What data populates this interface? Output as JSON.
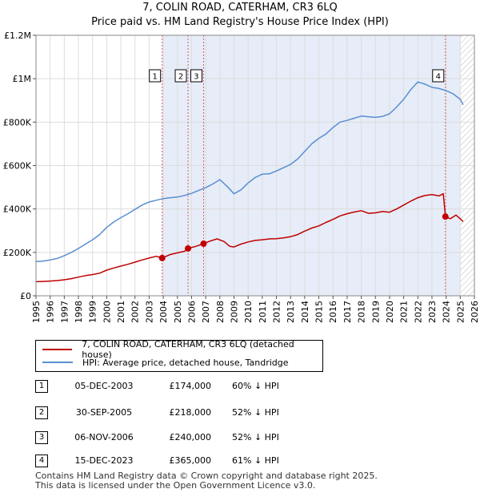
{
  "chart_data": {
    "type": "line",
    "title": "7, COLIN ROAD, CATERHAM, CR3 6LQ",
    "subtitle": "Price paid vs. HM Land Registry's House Price Index (HPI)",
    "xlabel": "",
    "ylabel": "",
    "xlim": [
      1995,
      2026
    ],
    "ylim": [
      0,
      1200000
    ],
    "x_ticks": [
      "1995",
      "1996",
      "1997",
      "1998",
      "1999",
      "2000",
      "2001",
      "2002",
      "2003",
      "2004",
      "2005",
      "2006",
      "2007",
      "2008",
      "2009",
      "2010",
      "2011",
      "2012",
      "2013",
      "2014",
      "2015",
      "2016",
      "2017",
      "2018",
      "2019",
      "2020",
      "2021",
      "2022",
      "2023",
      "2024",
      "2025",
      "2026"
    ],
    "y_ticks": [
      {
        "value": 0,
        "label": "£0"
      },
      {
        "value": 200000,
        "label": "£200K"
      },
      {
        "value": 400000,
        "label": "£400K"
      },
      {
        "value": 600000,
        "label": "£600K"
      },
      {
        "value": 800000,
        "label": "£800K"
      },
      {
        "value": 1000000,
        "label": "£1M"
      },
      {
        "value": 1200000,
        "label": "£1.2M"
      }
    ],
    "grid": true,
    "colors": {
      "property": "#c00000",
      "hpi": "#5a8fd0",
      "shade": "#dde6f5",
      "vline": "#e06060"
    },
    "series": [
      {
        "name": "7, COLIN ROAD, CATERHAM, CR3 6LQ (detached house)",
        "x": [
          1995.0,
          1995.5,
          1996.0,
          1996.5,
          1997.0,
          1997.5,
          1998.0,
          1998.5,
          1999.0,
          1999.5,
          2000.0,
          2000.5,
          2001.0,
          2001.5,
          2002.0,
          2002.5,
          2003.0,
          2003.5,
          2003.92,
          2004.5,
          2005.0,
          2005.5,
          2005.75,
          2006.3,
          2006.85,
          2007.3,
          2007.8,
          2008.3,
          2008.7,
          2009.0,
          2009.5,
          2010.0,
          2010.5,
          2011.0,
          2011.5,
          2012.0,
          2012.5,
          2013.0,
          2013.5,
          2014.0,
          2014.5,
          2015.0,
          2015.5,
          2016.0,
          2016.5,
          2017.0,
          2017.5,
          2018.0,
          2018.5,
          2019.0,
          2019.5,
          2020.0,
          2020.5,
          2021.0,
          2021.5,
          2022.0,
          2022.5,
          2023.0,
          2023.5,
          2023.8,
          2023.95,
          2024.3,
          2024.7,
          2025.0,
          2025.2
        ],
        "values": [
          65000,
          66000,
          68000,
          70000,
          74000,
          79000,
          86000,
          93000,
          98000,
          104000,
          118000,
          128000,
          137000,
          145000,
          155000,
          165000,
          174000,
          182000,
          174000,
          190000,
          198000,
          205000,
          218000,
          228000,
          240000,
          252000,
          262000,
          250000,
          228000,
          225000,
          238000,
          248000,
          255000,
          258000,
          262000,
          263000,
          267000,
          272000,
          282000,
          298000,
          312000,
          322000,
          338000,
          352000,
          368000,
          378000,
          386000,
          392000,
          380000,
          382000,
          388000,
          385000,
          400000,
          418000,
          436000,
          452000,
          462000,
          466000,
          460000,
          470000,
          365000,
          355000,
          372000,
          355000,
          342000
        ]
      },
      {
        "name": "HPI: Average price, detached house, Tandridge",
        "x": [
          1995.0,
          1995.5,
          1996.0,
          1996.5,
          1997.0,
          1997.5,
          1998.0,
          1998.5,
          1999.0,
          1999.5,
          2000.0,
          2000.5,
          2001.0,
          2001.5,
          2002.0,
          2002.5,
          2003.0,
          2003.5,
          2004.0,
          2004.5,
          2005.0,
          2005.5,
          2006.0,
          2006.5,
          2007.0,
          2007.5,
          2008.0,
          2008.5,
          2009.0,
          2009.5,
          2010.0,
          2010.5,
          2011.0,
          2011.5,
          2012.0,
          2012.5,
          2013.0,
          2013.5,
          2014.0,
          2014.5,
          2015.0,
          2015.5,
          2016.0,
          2016.5,
          2017.0,
          2017.5,
          2018.0,
          2018.5,
          2019.0,
          2019.5,
          2020.0,
          2020.5,
          2021.0,
          2021.5,
          2022.0,
          2022.5,
          2023.0,
          2023.5,
          2024.0,
          2024.5,
          2025.0,
          2025.2
        ],
        "values": [
          158000,
          160000,
          165000,
          172000,
          185000,
          200000,
          218000,
          238000,
          258000,
          282000,
          315000,
          340000,
          360000,
          378000,
          398000,
          418000,
          432000,
          440000,
          448000,
          452000,
          455000,
          462000,
          472000,
          485000,
          498000,
          515000,
          535000,
          505000,
          470000,
          488000,
          520000,
          545000,
          560000,
          562000,
          575000,
          590000,
          605000,
          630000,
          665000,
          700000,
          725000,
          745000,
          775000,
          800000,
          808000,
          818000,
          828000,
          825000,
          822000,
          826000,
          838000,
          870000,
          905000,
          950000,
          985000,
          975000,
          960000,
          955000,
          945000,
          930000,
          905000,
          880000
        ]
      }
    ],
    "sales": [
      {
        "num": "1",
        "x": 2003.92,
        "price": 174000
      },
      {
        "num": "2",
        "x": 2005.75,
        "price": 218000
      },
      {
        "num": "3",
        "x": 2006.85,
        "price": 240000
      },
      {
        "num": "4",
        "x": 2023.95,
        "price": 365000
      }
    ],
    "hatch_from": 2025.0
  },
  "legend": {
    "property_label": "7, COLIN ROAD, CATERHAM, CR3 6LQ (detached house)",
    "hpi_label": "HPI: Average price, detached house, Tandridge"
  },
  "sales_table": [
    {
      "num": "1",
      "date": "05-DEC-2003",
      "price": "£174,000",
      "hpi": "60% ↓ HPI"
    },
    {
      "num": "2",
      "date": "30-SEP-2005",
      "price": "£218,000",
      "hpi": "52% ↓ HPI"
    },
    {
      "num": "3",
      "date": "06-NOV-2006",
      "price": "£240,000",
      "hpi": "52% ↓ HPI"
    },
    {
      "num": "4",
      "date": "15-DEC-2023",
      "price": "£365,000",
      "hpi": "61% ↓ HPI"
    }
  ],
  "footer": {
    "line1": "Contains HM Land Registry data © Crown copyright and database right 2025.",
    "line2": "This data is licensed under the Open Government Licence v3.0."
  }
}
